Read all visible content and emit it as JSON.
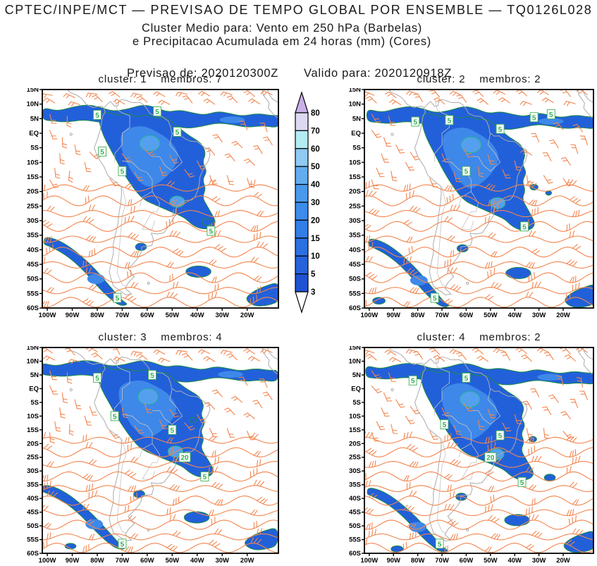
{
  "header": {
    "title": "CPTEC/INPE/MCT — PREVISAO DE TEMPO GLOBAL POR ENSEMBLE — TQ0126L028",
    "subtitle1": "Cluster Medio para: Vento em 250 hPa (Barbelas)",
    "subtitle2": "e Precipitacao Acumulada em 24 horas (mm) (Cores)",
    "init_line": "Previsao de: 2020120300Z",
    "valid_line": "Valido para: 2020120918Z"
  },
  "axes": {
    "lat_labels": [
      "15N",
      "10N",
      "5N",
      "EQ",
      "5S",
      "10S",
      "15S",
      "20S",
      "25S",
      "30S",
      "35S",
      "40S",
      "45S",
      "50S",
      "55S",
      "60S"
    ],
    "lon_labels": [
      "100W",
      "90W",
      "80W",
      "70W",
      "60W",
      "50W",
      "40W",
      "30W",
      "20W"
    ]
  },
  "colorbar": {
    "values": [
      "80",
      "70",
      "60",
      "50",
      "40",
      "30",
      "20",
      "15",
      "10",
      "5",
      "3"
    ],
    "segment_colors_top_to_bottom": [
      "#ded9f2",
      "#b3ebf2",
      "#8ecaf3",
      "#63acf0",
      "#4b99ed",
      "#3d8beb",
      "#327de6",
      "#2b70e1",
      "#2562db",
      "#1f52d3"
    ],
    "arrow_top_color": "#c9b0e8",
    "arrow_bottom_color": "#ffffff"
  },
  "map_colors": {
    "precip_base": "#2260da",
    "precip_mid": "#3e88ea",
    "precip_high": "#55a0ee",
    "contour_low": "#1b8a45",
    "contour_high": "#25b393",
    "wind_barb": "#f2854e",
    "coastline": "#ababab",
    "label_green": "#2fae52"
  },
  "panels": [
    {
      "title": "cluster: 1    membros: 7",
      "cluster": "1",
      "membros": "7",
      "contour_labels": [
        {
          "value": "5",
          "lon": -80,
          "lat": 6.3
        },
        {
          "value": "5",
          "lon": -56,
          "lat": 7.5
        },
        {
          "value": "5",
          "lon": -48,
          "lat": 0.5
        },
        {
          "value": "5",
          "lon": -78,
          "lat": -6.3
        },
        {
          "value": "5",
          "lon": -70,
          "lat": -13
        },
        {
          "value": "5",
          "lon": -34.5,
          "lat": -33.5
        },
        {
          "value": "5",
          "lon": -72,
          "lat": -56.5
        }
      ]
    },
    {
      "title": "cluster: 2    membros: 2",
      "cluster": "2",
      "membros": "2",
      "contour_labels": [
        {
          "value": "5",
          "lon": -81,
          "lat": 4
        },
        {
          "value": "5",
          "lon": -67,
          "lat": 4.5
        },
        {
          "value": "5",
          "lon": -46,
          "lat": 1.5
        },
        {
          "value": "5",
          "lon": -32,
          "lat": 5.5
        },
        {
          "value": "5",
          "lon": -25,
          "lat": 6.5
        },
        {
          "value": "5",
          "lon": -60,
          "lat": -13
        },
        {
          "value": "5",
          "lon": -36,
          "lat": -32
        },
        {
          "value": "5",
          "lon": -73,
          "lat": -56.5
        }
      ]
    },
    {
      "title": "cluster: 3    membros: 4",
      "cluster": "3",
      "membros": "4",
      "contour_labels": [
        {
          "value": "5",
          "lon": -80,
          "lat": 4
        },
        {
          "value": "5",
          "lon": -58,
          "lat": 5
        },
        {
          "value": "5",
          "lon": -73,
          "lat": -10
        },
        {
          "value": "5",
          "lon": -50,
          "lat": -15
        },
        {
          "value": "20",
          "lon": -45,
          "lat": -25
        },
        {
          "value": "5",
          "lon": -37,
          "lat": -32
        },
        {
          "value": "5",
          "lon": -70,
          "lat": -56.5
        }
      ]
    },
    {
      "title": "cluster: 4    membros: 2",
      "cluster": "4",
      "membros": "2",
      "contour_labels": [
        {
          "value": "5",
          "lon": -82,
          "lat": 3
        },
        {
          "value": "5",
          "lon": -60,
          "lat": 4
        },
        {
          "value": "5",
          "lon": -69,
          "lat": -13
        },
        {
          "value": "5",
          "lon": -46,
          "lat": -17
        },
        {
          "value": "20",
          "lon": -50,
          "lat": -25
        },
        {
          "value": "5",
          "lon": -37,
          "lat": -34
        },
        {
          "value": "5",
          "lon": -71,
          "lat": -56.5
        }
      ]
    }
  ],
  "chart_data": {
    "type": "heatmap",
    "subtype": "ensemble-cluster-weather-maps",
    "organization": "CPTEC/INPE/MCT",
    "product": "PREVISAO DE TEMPO GLOBAL POR ENSEMBLE",
    "model": "TQ0126L028",
    "fields": [
      "Vento em 250 hPa (Barbelas)",
      "Precipitacao Acumulada em 24 horas (mm) (Cores)"
    ],
    "init_time": "2020120300Z",
    "valid_time": "2020120918Z",
    "panels": [
      {
        "cluster": 1,
        "membros": 7
      },
      {
        "cluster": 2,
        "membros": 2
      },
      {
        "cluster": 3,
        "membros": 4
      },
      {
        "cluster": 4,
        "membros": 2
      }
    ],
    "colorbar_levels_mm": [
      3,
      5,
      10,
      15,
      20,
      30,
      40,
      50,
      60,
      70,
      80
    ],
    "map_extent": {
      "lon_range": [
        "102W",
        "8W"
      ],
      "lat_range": [
        "60S",
        "15N"
      ]
    },
    "lat_ticks": [
      "15N",
      "10N",
      "5N",
      "EQ",
      "5S",
      "10S",
      "15S",
      "20S",
      "25S",
      "30S",
      "35S",
      "40S",
      "45S",
      "50S",
      "55S",
      "60S"
    ],
    "lon_ticks": [
      "100W",
      "90W",
      "80W",
      "70W",
      "60W",
      "50W",
      "40W",
      "30W",
      "20W"
    ],
    "legend_position": "center-between-top-panels",
    "grid": false
  }
}
